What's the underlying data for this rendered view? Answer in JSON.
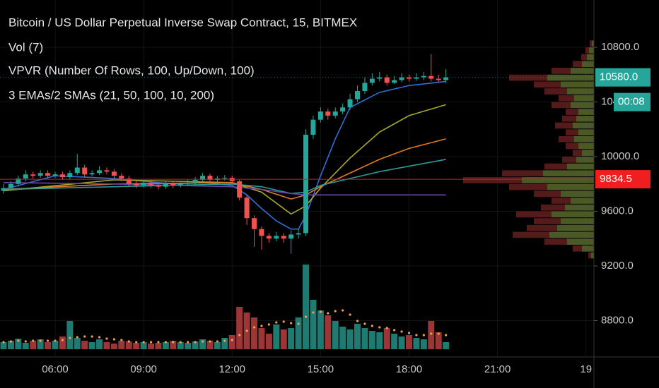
{
  "chart_data": {
    "type": "candlestick",
    "title": "Bitcoin / US Dollar Perpetual Inverse Swap Contract, 15, BITMEX",
    "indicators": [
      "Vol (7)",
      "VPVR (Number Of Rows, 100, Up/Down, 100)",
      "3 EMAs/2 SMAs (21, 50, 100, 10, 200)"
    ],
    "x": [
      4.25,
      4.5,
      4.75,
      5,
      5.25,
      5.5,
      5.75,
      6,
      6.25,
      6.5,
      6.75,
      7,
      7.25,
      7.5,
      7.75,
      8,
      8.25,
      8.5,
      8.75,
      9,
      9.25,
      9.5,
      9.75,
      10,
      10.25,
      10.5,
      10.75,
      11,
      11.25,
      11.5,
      11.75,
      12,
      12.25,
      12.5,
      12.75,
      13,
      13.25,
      13.5,
      13.75,
      14,
      14.25,
      14.5,
      14.75,
      15,
      15.25,
      15.5,
      15.75,
      16,
      16.25,
      16.5,
      16.75,
      17,
      17.25,
      17.5,
      17.75,
      18,
      18.25,
      18.5,
      18.75,
      19,
      19.25
    ],
    "open": [
      9750,
      9770,
      9800,
      9840,
      9870,
      9860,
      9880,
      9860,
      9870,
      9850,
      9880,
      9920,
      9870,
      9880,
      9900,
      9890,
      9860,
      9840,
      9800,
      9790,
      9810,
      9790,
      9780,
      9800,
      9790,
      9800,
      9810,
      9830,
      9860,
      9830,
      9840,
      9845,
      9820,
      9700,
      9550,
      9470,
      9420,
      9400,
      9420,
      9400,
      9430,
      9440,
      10160,
      10270,
      10330,
      10300,
      10330,
      10360,
      10420,
      10480,
      10540,
      10570,
      10580,
      10540,
      10560,
      10580,
      10570,
      10580,
      10590,
      10570,
      10560
    ],
    "high": [
      9800,
      9820,
      9860,
      9900,
      9890,
      9900,
      9900,
      9890,
      9890,
      9900,
      10020,
      9940,
      9900,
      9930,
      9920,
      9910,
      9880,
      9860,
      9820,
      9830,
      9830,
      9810,
      9820,
      9820,
      9820,
      9830,
      9850,
      9880,
      9875,
      9860,
      9865,
      9860,
      9830,
      9720,
      9570,
      9490,
      9440,
      9450,
      9440,
      9460,
      9470,
      10200,
      10300,
      10360,
      10350,
      10360,
      10390,
      10460,
      10520,
      10580,
      10610,
      10620,
      10600,
      10590,
      10610,
      10600,
      10610,
      10620,
      10750,
      10600,
      10640
    ],
    "low": [
      9730,
      9750,
      9780,
      9820,
      9840,
      9845,
      9840,
      9845,
      9830,
      9835,
      9865,
      9850,
      9855,
      9865,
      9870,
      9840,
      9820,
      9780,
      9770,
      9775,
      9770,
      9760,
      9765,
      9770,
      9775,
      9785,
      9795,
      9815,
      9810,
      9815,
      9825,
      9800,
      9680,
      9500,
      9340,
      9320,
      9370,
      9380,
      9370,
      9290,
      9400,
      9420,
      10130,
      10250,
      10270,
      10280,
      10310,
      10340,
      10400,
      10460,
      10520,
      10550,
      10520,
      10530,
      10545,
      10550,
      10555,
      10560,
      10550,
      10540,
      10540
    ],
    "close": [
      9770,
      9800,
      9840,
      9870,
      9860,
      9880,
      9860,
      9870,
      9850,
      9880,
      9920,
      9870,
      9880,
      9900,
      9890,
      9860,
      9840,
      9800,
      9790,
      9810,
      9790,
      9780,
      9800,
      9790,
      9800,
      9810,
      9830,
      9860,
      9830,
      9840,
      9845,
      9820,
      9700,
      9550,
      9470,
      9420,
      9400,
      9420,
      9400,
      9430,
      9440,
      10160,
      10270,
      10330,
      10300,
      10330,
      10360,
      10420,
      10480,
      10540,
      10570,
      10580,
      10540,
      10560,
      10580,
      10570,
      10580,
      10590,
      10570,
      10560,
      10580
    ],
    "volume": [
      10,
      12,
      15,
      9,
      12,
      14,
      10,
      12,
      18,
      40,
      16,
      12,
      10,
      14,
      10,
      8,
      12,
      11,
      9,
      10,
      8,
      9,
      10,
      12,
      10,
      9,
      11,
      14,
      12,
      10,
      16,
      20,
      60,
      52,
      45,
      30,
      22,
      35,
      28,
      30,
      45,
      120,
      70,
      55,
      48,
      40,
      32,
      28,
      36,
      30,
      26,
      24,
      30,
      22,
      18,
      20,
      16,
      14,
      40,
      24,
      10
    ],
    "volume_ma": [
      10,
      11,
      12,
      11,
      12,
      12,
      12,
      12,
      13,
      16,
      17,
      18,
      18,
      17,
      15,
      14,
      13,
      11,
      10,
      10,
      10,
      10,
      10,
      10,
      10,
      10,
      10,
      11,
      11,
      11,
      12,
      13,
      20,
      26,
      31,
      33,
      35,
      38,
      39,
      37,
      36,
      46,
      52,
      53,
      51,
      54,
      55,
      49,
      40,
      36,
      33,
      31,
      30,
      27,
      25,
      23,
      20,
      20,
      22,
      22,
      20
    ],
    "up_color": "#26a69a",
    "down_color": "#ef5350",
    "series": [
      {
        "color": "#2f6fd6",
        "x": [
          4.25,
          6,
          8,
          10,
          11,
          12,
          12.5,
          13,
          13.5,
          14,
          14.25,
          14.5,
          15,
          15.5,
          16,
          17,
          18,
          19.25
        ],
        "values": [
          9760,
          9860,
          9840,
          9800,
          9810,
          9790,
          9720,
          9620,
          9530,
          9470,
          9470,
          9570,
          9860,
          10130,
          10360,
          10470,
          10520,
          10550
        ]
      },
      {
        "color": "#a9a82e",
        "x": [
          4.25,
          8,
          12,
          13,
          14,
          14.5,
          15,
          16,
          17,
          18,
          19.25
        ],
        "values": [
          9750,
          9830,
          9810,
          9740,
          9580,
          9640,
          9770,
          9990,
          10180,
          10300,
          10380
        ]
      },
      {
        "color": "#e07b28",
        "x": [
          4.25,
          8,
          12,
          13,
          14,
          14.5,
          15,
          16,
          17,
          18,
          19.25
        ],
        "values": [
          9760,
          9800,
          9810,
          9760,
          9690,
          9720,
          9780,
          9880,
          9980,
          10060,
          10130
        ]
      },
      {
        "color": "#2b9a95",
        "x": [
          4.25,
          8,
          12,
          13,
          14,
          14.5,
          15,
          16,
          17,
          18,
          19.25
        ],
        "values": [
          9760,
          9780,
          9800,
          9780,
          9730,
          9740,
          9790,
          9840,
          9890,
          9930,
          9980
        ]
      },
      {
        "color": "#6b44a8",
        "x": [
          4.25,
          8,
          12,
          13,
          14,
          14.5,
          15,
          17,
          19.25
        ],
        "values": [
          9810,
          9800,
          9780,
          9760,
          9730,
          9720,
          9720,
          9720,
          9720
        ]
      }
    ],
    "profile": {
      "bins": [
        9250,
        9300,
        9350,
        9400,
        9450,
        9500,
        9550,
        9600,
        9650,
        9700,
        9750,
        9800,
        9850,
        9900,
        9950,
        10000,
        10050,
        10100,
        10150,
        10200,
        10250,
        10300,
        10350,
        10400,
        10450,
        10500,
        10550,
        10600,
        10650,
        10700,
        10750,
        10800,
        10850
      ],
      "up": [
        4,
        17,
        38,
        63,
        52,
        47,
        60,
        41,
        33,
        47,
        66,
        102,
        72,
        38,
        25,
        17,
        22,
        28,
        22,
        30,
        25,
        22,
        33,
        28,
        38,
        47,
        66,
        33,
        17,
        10,
        7,
        3
      ],
      "down": [
        4,
        13,
        32,
        52,
        43,
        38,
        50,
        34,
        27,
        38,
        54,
        83,
        58,
        32,
        20,
        13,
        18,
        22,
        18,
        25,
        20,
        18,
        27,
        22,
        32,
        38,
        54,
        27,
        13,
        8,
        5,
        3
      ],
      "up_color": "#57692c",
      "down_color": "#5e1d1d"
    },
    "xlim": [
      4.13,
      24.27
    ],
    "xticks": [
      {
        "value": 6,
        "label": "06:00"
      },
      {
        "value": 9,
        "label": "09:00"
      },
      {
        "value": 12,
        "label": "12:00"
      },
      {
        "value": 15,
        "label": "15:00"
      },
      {
        "value": 18,
        "label": "18:00"
      },
      {
        "value": 21,
        "label": "21:00"
      },
      {
        "value": 24,
        "label": "19"
      }
    ],
    "ylim": [
      8462,
      11146
    ],
    "yticks": [
      {
        "value": 8800,
        "label": "8800.0"
      },
      {
        "value": 9200,
        "label": "9200.0"
      },
      {
        "value": 9600,
        "label": "9600.0"
      },
      {
        "value": 10000,
        "label": "10000.0"
      },
      {
        "value": 10400,
        "label": "10400.0"
      },
      {
        "value": 10800,
        "label": "10800.0"
      }
    ],
    "last_price": {
      "value": 10580,
      "label": "10580.0"
    },
    "countdown": "00:08",
    "price_line": 9834.5,
    "grid": true
  }
}
